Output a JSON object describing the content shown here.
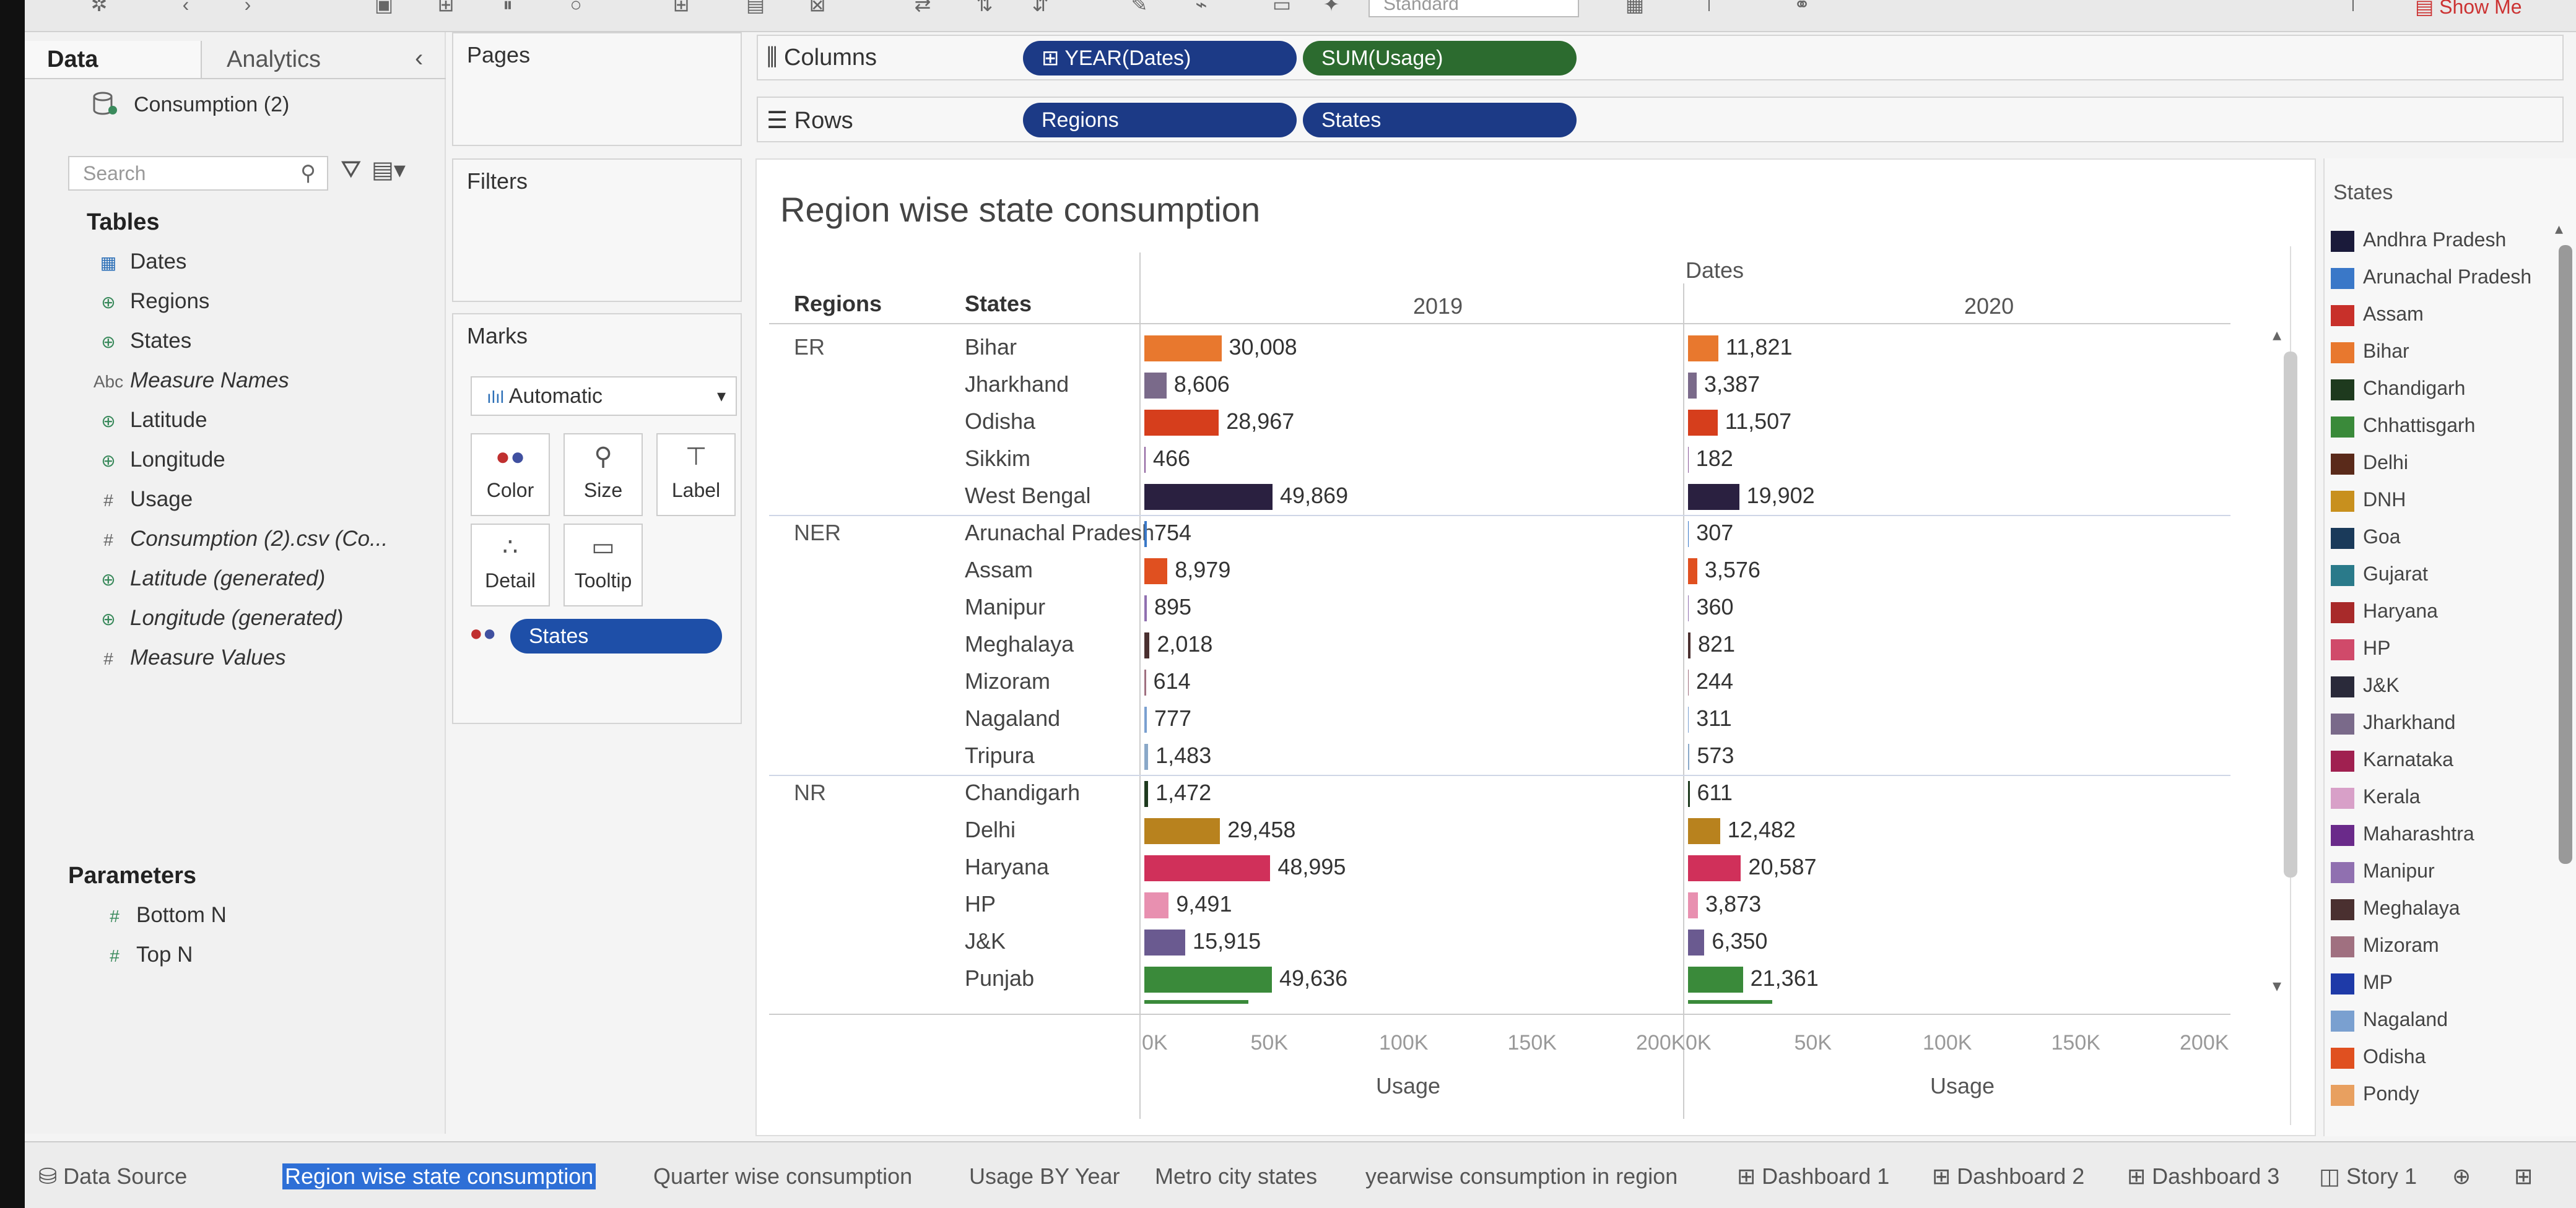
{
  "colors": {
    "pill_blue": "#1e4fa8",
    "pill_green": "#2c6b2f",
    "active_tab": "#2e6fd6"
  },
  "toolbar": {
    "dropdown_value": "Standard",
    "show_me": "Show Me"
  },
  "data_pane": {
    "tab_data": "Data",
    "tab_analytics": "Analytics",
    "datasource": "Consumption (2)",
    "search_placeholder": "Search",
    "tables_heading": "Tables",
    "fields": [
      {
        "icon": "calendar-icon",
        "label": "Dates"
      },
      {
        "icon": "globe-icon",
        "label": "Regions"
      },
      {
        "icon": "globe-icon",
        "label": "States"
      },
      {
        "icon": "abc-icon",
        "label": "Measure Names"
      },
      {
        "icon": "globe-icon",
        "label": "Latitude"
      },
      {
        "icon": "globe-icon",
        "label": "Longitude"
      },
      {
        "icon": "hash-icon",
        "label": "Usage"
      },
      {
        "icon": "hash-icon",
        "label": "Consumption (2).csv (Co..."
      },
      {
        "icon": "globe-icon",
        "label": "Latitude (generated)"
      },
      {
        "icon": "globe-icon",
        "label": "Longitude (generated)"
      },
      {
        "icon": "hash-icon",
        "label": "Measure Values"
      }
    ],
    "parameters_heading": "Parameters",
    "parameters": [
      "Bottom N",
      "Top N"
    ]
  },
  "pages_panel": {
    "title": "Pages"
  },
  "filters_panel": {
    "title": "Filters"
  },
  "marks_panel": {
    "title": "Marks",
    "type": "Automatic",
    "buttons": [
      "Color",
      "Size",
      "Label",
      "Detail",
      "Tooltip"
    ],
    "color_pill": "States"
  },
  "shelves": {
    "columns_label": "Columns",
    "rows_label": "Rows",
    "columns_pills": [
      "YEAR(Dates)",
      "SUM(Usage)"
    ],
    "rows_pills": [
      "Regions",
      "States"
    ]
  },
  "view": {
    "title": "Region wise state consumption",
    "header_regions": "Regions",
    "header_states": "States",
    "header_dates": "Dates",
    "years": [
      "2019",
      "2020"
    ],
    "axis_ticks": [
      "0K",
      "50K",
      "100K",
      "150K",
      "200K"
    ],
    "axis_label": "Usage"
  },
  "chart_data": {
    "type": "bar",
    "title": "Region wise state consumption",
    "xlabel": "Usage",
    "xlim": [
      0,
      200000
    ],
    "columns": [
      "2019",
      "2020"
    ],
    "rows": [
      {
        "region": "ER",
        "state": "Bihar",
        "v2019": 30008,
        "v2020": 11821,
        "l2019": "30,008",
        "l2020": "11,821",
        "color": "#e8782e"
      },
      {
        "region": "",
        "state": "Jharkhand",
        "v2019": 8606,
        "v2020": 3387,
        "l2019": "8,606",
        "l2020": "3,387",
        "color": "#7a6a8a"
      },
      {
        "region": "",
        "state": "Odisha",
        "v2019": 28967,
        "v2020": 11507,
        "l2019": "28,967",
        "l2020": "11,507",
        "color": "#d63e1c"
      },
      {
        "region": "",
        "state": "Sikkim",
        "v2019": 466,
        "v2020": 182,
        "l2019": "466",
        "l2020": "182",
        "color": "#8a5a9a"
      },
      {
        "region": "",
        "state": "West Bengal",
        "v2019": 49869,
        "v2020": 19902,
        "l2019": "49,869",
        "l2020": "19,902",
        "color": "#2a2040"
      },
      {
        "region": "NER",
        "state": "Arunachal Pradesh",
        "v2019": 754,
        "v2020": 307,
        "l2019": "754",
        "l2020": "307",
        "color": "#3a78c8"
      },
      {
        "region": "",
        "state": "Assam",
        "v2019": 8979,
        "v2020": 3576,
        "l2019": "8,979",
        "l2020": "3,576",
        "color": "#e05020"
      },
      {
        "region": "",
        "state": "Manipur",
        "v2019": 895,
        "v2020": 360,
        "l2019": "895",
        "l2020": "360",
        "color": "#9070b0"
      },
      {
        "region": "",
        "state": "Meghalaya",
        "v2019": 2018,
        "v2020": 821,
        "l2019": "2,018",
        "l2020": "821",
        "color": "#4a3030"
      },
      {
        "region": "",
        "state": "Mizoram",
        "v2019": 614,
        "v2020": 244,
        "l2019": "614",
        "l2020": "244",
        "color": "#a07080"
      },
      {
        "region": "",
        "state": "Nagaland",
        "v2019": 777,
        "v2020": 311,
        "l2019": "777",
        "l2020": "311",
        "color": "#7aa0d0"
      },
      {
        "region": "",
        "state": "Tripura",
        "v2019": 1483,
        "v2020": 573,
        "l2019": "1,483",
        "l2020": "573",
        "color": "#8aa8c8"
      },
      {
        "region": "NR",
        "state": "Chandigarh",
        "v2019": 1472,
        "v2020": 611,
        "l2019": "1,472",
        "l2020": "611",
        "color": "#1e3a1e"
      },
      {
        "region": "",
        "state": "Delhi",
        "v2019": 29458,
        "v2020": 12482,
        "l2019": "29,458",
        "l2020": "12,482",
        "color": "#b8821e"
      },
      {
        "region": "",
        "state": "Haryana",
        "v2019": 48995,
        "v2020": 20587,
        "l2019": "48,995",
        "l2020": "20,587",
        "color": "#d0305a"
      },
      {
        "region": "",
        "state": "HP",
        "v2019": 9491,
        "v2020": 3873,
        "l2019": "9,491",
        "l2020": "3,873",
        "color": "#e890b0"
      },
      {
        "region": "",
        "state": "J&K",
        "v2019": 15915,
        "v2020": 6350,
        "l2019": "15,915",
        "l2020": "6,350",
        "color": "#6a5a90"
      },
      {
        "region": "",
        "state": "Punjab",
        "v2019": 49636,
        "v2020": 21361,
        "l2019": "49,636",
        "l2020": "21,361",
        "color": "#3a8a3a"
      }
    ]
  },
  "legend": {
    "title": "States",
    "items": [
      {
        "label": "Andhra Pradesh",
        "color": "#1a1a3a"
      },
      {
        "label": "Arunachal Pradesh",
        "color": "#3a78c8"
      },
      {
        "label": "Assam",
        "color": "#c8302a"
      },
      {
        "label": "Bihar",
        "color": "#e8782e"
      },
      {
        "label": "Chandigarh",
        "color": "#1e3a1e"
      },
      {
        "label": "Chhattisgarh",
        "color": "#3a8a3a"
      },
      {
        "label": "Delhi",
        "color": "#5a2a1a"
      },
      {
        "label": "DNH",
        "color": "#c8901e"
      },
      {
        "label": "Goa",
        "color": "#1a3a5a"
      },
      {
        "label": "Gujarat",
        "color": "#2a7a8a"
      },
      {
        "label": "Haryana",
        "color": "#a82a2a"
      },
      {
        "label": "HP",
        "color": "#d04a6a"
      },
      {
        "label": "J&K",
        "color": "#2a2a3a"
      },
      {
        "label": "Jharkhand",
        "color": "#7a6a8a"
      },
      {
        "label": "Karnataka",
        "color": "#a02050"
      },
      {
        "label": "Kerala",
        "color": "#d8a0c8"
      },
      {
        "label": "Maharashtra",
        "color": "#6a2a8a"
      },
      {
        "label": "Manipur",
        "color": "#9070b0"
      },
      {
        "label": "Meghalaya",
        "color": "#4a3030"
      },
      {
        "label": "Mizoram",
        "color": "#a07080"
      },
      {
        "label": "MP",
        "color": "#1e3aa8"
      },
      {
        "label": "Nagaland",
        "color": "#7aa0d0"
      },
      {
        "label": "Odisha",
        "color": "#e05020"
      },
      {
        "label": "Pondy",
        "color": "#e8a060"
      }
    ]
  },
  "bottom_tabs": [
    "Data Source",
    "Region wise state consumption",
    "Quarter wise consumption",
    "Usage BY Year",
    "Metro city states",
    "yearwise consumption in region",
    "Dashboard 1",
    "Dashboard 2",
    "Dashboard 3",
    "Story 1"
  ]
}
